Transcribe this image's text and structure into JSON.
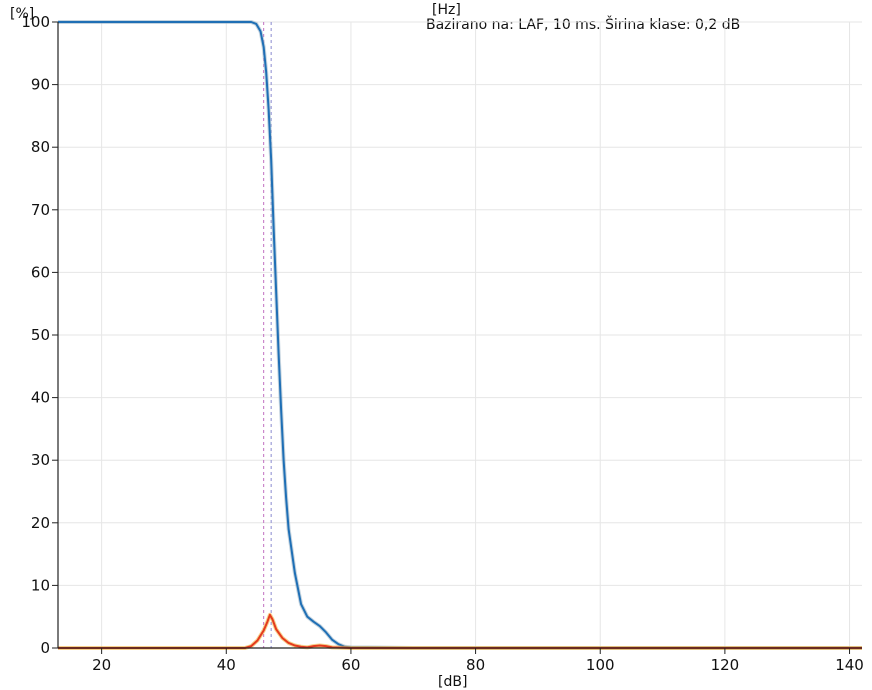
{
  "header": {
    "unit_top": "[Hz]",
    "caption": "Bazirano na: LAF, 10 ms. Širina klase: 0,2 dB"
  },
  "chart_data": {
    "type": "line",
    "ylabel": "[%]",
    "xlabel": "[dB]",
    "xlim": [
      13,
      142
    ],
    "ylim": [
      0,
      100
    ],
    "xticks": [
      20,
      40,
      60,
      80,
      100,
      120,
      140
    ],
    "yticks": [
      0,
      10,
      20,
      30,
      40,
      50,
      60,
      70,
      80,
      90,
      100
    ],
    "grid": true,
    "reference_x": [
      46,
      47.2
    ],
    "series": [
      {
        "color": "#1f6fb5",
        "kind": "cumulative",
        "x": [
          13,
          30,
          44,
          44.8,
          45.5,
          46,
          46.4,
          46.8,
          47.2,
          47.6,
          48,
          48.4,
          48.8,
          49.2,
          49.6,
          50,
          51,
          52,
          53,
          54,
          55,
          56,
          57,
          58,
          59,
          60,
          70,
          100,
          142
        ],
        "y": [
          100,
          100,
          100,
          99.7,
          98.5,
          96,
          92,
          86,
          78,
          67,
          57,
          47,
          38,
          30,
          24,
          19,
          12,
          7,
          5,
          4.2,
          3.5,
          2.5,
          1.3,
          0.6,
          0.2,
          0.1,
          0,
          0,
          0
        ]
      },
      {
        "color": "#e53a1e",
        "kind": "distribution",
        "x": [
          13,
          30,
          43,
          44,
          45,
          46,
          46.6,
          47,
          47.4,
          48,
          49,
          50,
          51,
          52,
          53,
          54,
          55,
          56,
          57,
          60,
          142
        ],
        "y": [
          0,
          0,
          0,
          0.3,
          1.2,
          2.8,
          4.2,
          5.3,
          4.6,
          3.0,
          1.6,
          0.8,
          0.4,
          0.2,
          0.1,
          0.3,
          0.4,
          0.3,
          0.1,
          0,
          0
        ]
      }
    ]
  }
}
